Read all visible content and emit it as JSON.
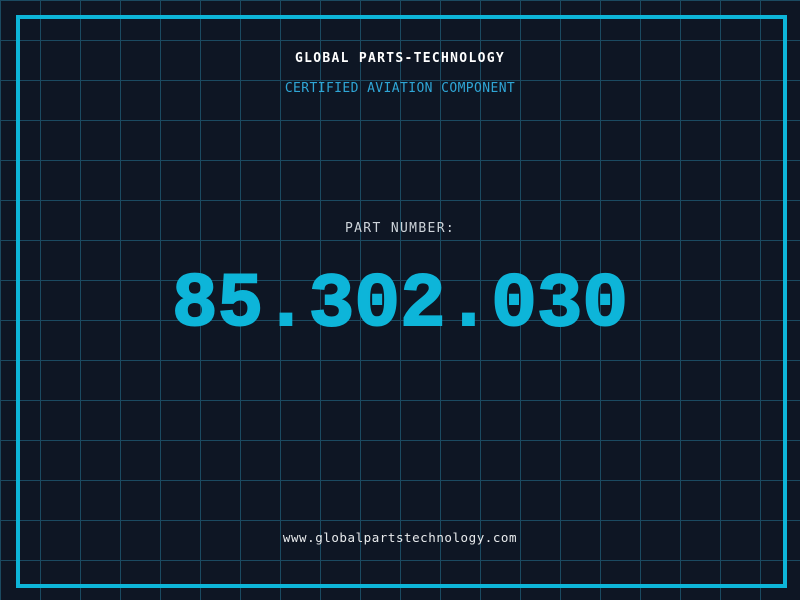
{
  "theme": {
    "background_color": "#0e1624",
    "grid_line_color": "#1b4a61",
    "frame_color": "#0db5d9",
    "part_number_color": "#0db5d9",
    "title_color": "#ffffff",
    "subtitle_color": "#2fa6d6",
    "label_color": "#cdd3d9",
    "website_color": "#e9ebed"
  },
  "header": {
    "title": "GLOBAL PARTS-TECHNOLOGY",
    "subtitle": "CERTIFIED AVIATION COMPONENT"
  },
  "part": {
    "label": "PART NUMBER:",
    "number": "85.302.030"
  },
  "footer": {
    "website": "www.globalpartstechnology.com"
  }
}
